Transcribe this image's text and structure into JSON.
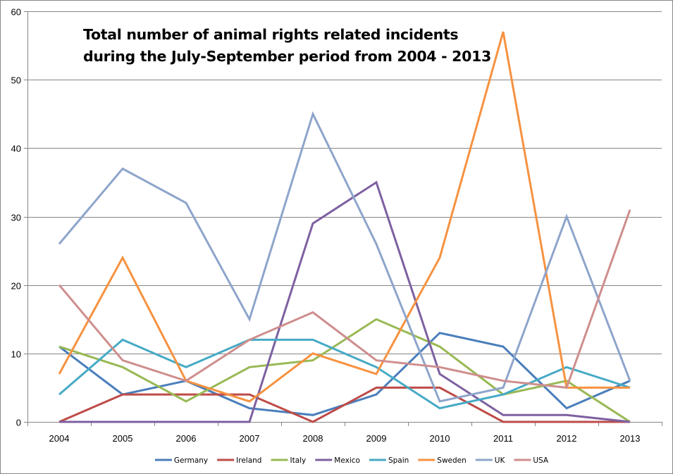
{
  "chart_data": {
    "type": "line",
    "title_lines": [
      "Total number of animal rights related incidents",
      "during the July-September period from 2004 - 2013"
    ],
    "title": "Total number of animal rights related incidents during the July-September period from 2004 - 2013",
    "xlabel": "",
    "ylabel": "",
    "categories": [
      "2004",
      "2005",
      "2006",
      "2007",
      "2008",
      "2009",
      "2010",
      "2011",
      "2012",
      "2013"
    ],
    "ylim": [
      0,
      60
    ],
    "yticks": [
      0,
      10,
      20,
      30,
      40,
      50,
      60
    ],
    "grid": true,
    "legend_position": "bottom",
    "series": [
      {
        "name": "Germany",
        "color": "#4A7EBB",
        "values": [
          11,
          4,
          6,
          2,
          1,
          4,
          13,
          11,
          2,
          6
        ]
      },
      {
        "name": "Ireland",
        "color": "#BE4B48",
        "values": [
          0,
          4,
          4,
          4,
          0,
          5,
          5,
          0,
          0,
          0
        ]
      },
      {
        "name": "Italy",
        "color": "#98B954",
        "values": [
          11,
          8,
          3,
          8,
          9,
          15,
          11,
          4,
          6,
          0
        ]
      },
      {
        "name": "Mexico",
        "color": "#7D60A0",
        "values": [
          0,
          0,
          0,
          0,
          29,
          35,
          7,
          1,
          1,
          0
        ]
      },
      {
        "name": "Spain",
        "color": "#46AAC5",
        "values": [
          4,
          12,
          8,
          12,
          12,
          8,
          2,
          4,
          8,
          5
        ]
      },
      {
        "name": "Sweden",
        "color": "#F69240",
        "values": [
          7,
          24,
          6,
          3,
          10,
          7,
          24,
          57,
          5,
          5
        ]
      },
      {
        "name": "UK",
        "color": "#8EA5CB",
        "values": [
          26,
          37,
          32,
          15,
          45,
          26,
          3,
          5,
          30,
          6
        ]
      },
      {
        "name": "USA",
        "color": "#CE8E8D",
        "values": [
          20,
          9,
          6,
          12,
          16,
          9,
          8,
          6,
          5,
          31
        ]
      }
    ]
  }
}
